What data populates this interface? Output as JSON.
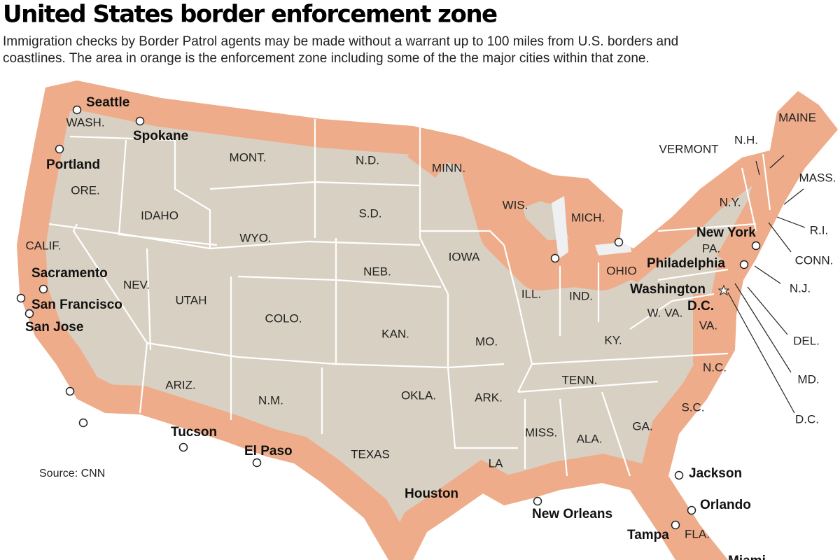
{
  "header": {
    "title": "United States border enforcement zone",
    "subtitle": [
      "Immigration checks by Border Patrol agents may be made without a warrant up to 100 miles from U.S. borders and",
      "coastlines. The area in orange is the enforcement zone including some of the the major cities within that zone."
    ]
  },
  "states": [
    "WASH.",
    "ORE.",
    "CALIF.",
    "NEV.",
    "IDAHO",
    "MONT.",
    "WYO.",
    "UTAH",
    "ARIZ.",
    "COLO.",
    "N.M.",
    "N.D.",
    "S.D.",
    "NEB.",
    "KAN.",
    "OKLA.",
    "TEXAS",
    "MINN.",
    "IOWA",
    "MO.",
    "ARK.",
    "LA",
    "WIS.",
    "ILL.",
    "MICH.",
    "IND.",
    "OHIO",
    "KY.",
    "TENN.",
    "MISS.",
    "ALA.",
    "GA.",
    "FLA.",
    "S.C.",
    "N.C.",
    "VA.",
    "W. VA.",
    "PA.",
    "N.Y.",
    "VERMONT",
    "N.H.",
    "MAINE",
    "MASS.",
    "R.I.",
    "CONN.",
    "N.J.",
    "DEL.",
    "MD.",
    "D.C."
  ],
  "cities": [
    {
      "lines": [
        "Seattle"
      ]
    },
    {
      "lines": [
        "Spokane"
      ]
    },
    {
      "lines": [
        "Portland"
      ]
    },
    {
      "lines": [
        "Sacramento"
      ]
    },
    {
      "lines": [
        "San Francisco"
      ]
    },
    {
      "lines": [
        "San Jose"
      ]
    },
    {
      "lines": [
        "Tucson"
      ]
    },
    {
      "lines": [
        "El Paso"
      ]
    },
    {
      "lines": [
        "Houston"
      ]
    },
    {
      "lines": [
        "New Orleans"
      ]
    },
    {
      "lines": [
        "Jackson"
      ]
    },
    {
      "lines": [
        "Orlando"
      ]
    },
    {
      "lines": [
        "Tampa"
      ]
    },
    {
      "lines": [
        "Miami"
      ]
    },
    {
      "lines": [
        "New York"
      ]
    },
    {
      "lines": [
        "Philadelphia"
      ]
    },
    {
      "lines": [
        "Washington",
        "D.C."
      ]
    }
  ],
  "source": "Source: CNN"
}
